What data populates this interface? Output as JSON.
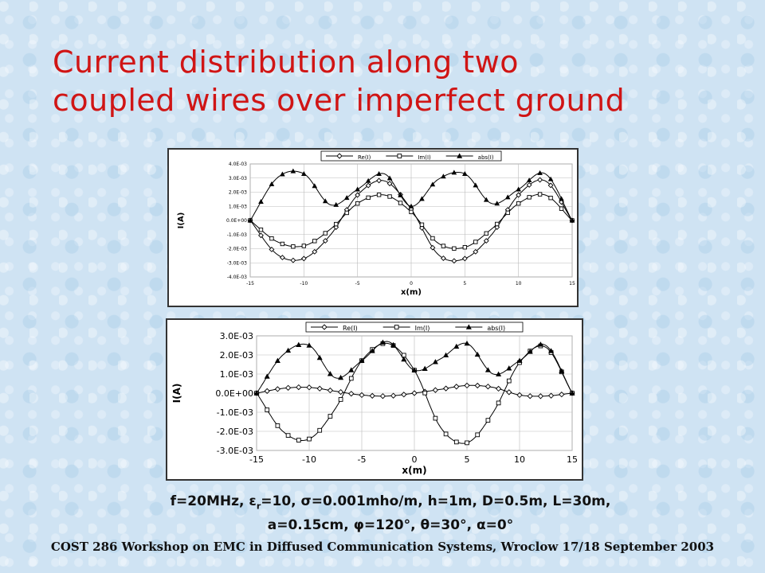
{
  "title_line1": "Current distribution along two",
  "title_line2": "coupled wires over imperfect ground",
  "params": {
    "line1_a": "f=20MHz, ε",
    "line1_sub": "r",
    "line1_b": "=10, σ=0.001mho/m, h=1m, D=0.5m, L=30m,",
    "line2": "a=0.15cm, φ=120°, θ=30°, α=0°"
  },
  "footer": "COST 286  Workshop on EMC in Diffused Communication Systems,   Wroclow 17/18 September 2003",
  "chart_data": [
    {
      "type": "line",
      "title": "",
      "xlabel": "x(m)",
      "ylabel": "I(A)",
      "xlim": [
        -15,
        15
      ],
      "ylim": [
        -0.004,
        0.004
      ],
      "xticks": [
        "-15",
        "-10",
        "-5",
        "0",
        "5",
        "10",
        "15"
      ],
      "yticks": [
        "-4.0E-03",
        "-3.0E-03",
        "-2.0E-03",
        "-1.0E-03",
        "0.0E+00",
        "1.0E-03",
        "2.0E-03",
        "3.0E-03",
        "4.0E-03"
      ],
      "legend_position": "top",
      "grid": true,
      "x": [
        -15,
        -12.5,
        -10,
        -7.5,
        -5,
        -2.5,
        0,
        2.5,
        5,
        7.5,
        10,
        12.5,
        15
      ],
      "series": [
        {
          "name": "Re(I)",
          "marker": "diamond",
          "values": [
            0,
            -0.0024,
            -0.0027,
            -0.001,
            0.0018,
            0.0028,
            0.0008,
            -0.0024,
            -0.0027,
            -0.001,
            0.0018,
            0.0028,
            0
          ]
        },
        {
          "name": "Im(I)",
          "marker": "square",
          "values": [
            0,
            -0.0015,
            -0.0018,
            -0.0006,
            0.0012,
            0.0018,
            0.0006,
            -0.0016,
            -0.0019,
            -0.0006,
            0.0012,
            0.0018,
            0
          ]
        },
        {
          "name": "abs(I)",
          "marker": "triangle",
          "values": [
            0,
            0.003,
            0.0033,
            0.0011,
            0.0022,
            0.0033,
            0.001,
            0.0029,
            0.0033,
            0.0012,
            0.0022,
            0.0033,
            0
          ]
        }
      ]
    },
    {
      "type": "line",
      "title": "",
      "xlabel": "x(m)",
      "ylabel": "I(A)",
      "xlim": [
        -15,
        15
      ],
      "ylim": [
        -0.003,
        0.003
      ],
      "xticks": [
        "-15",
        "-10",
        "-5",
        "0",
        "5",
        "10",
        "15"
      ],
      "yticks": [
        "-3.0E-03",
        "-2.0E-03",
        "-1.0E-03",
        "0.0E+00",
        "1.0E-03",
        "2.0E-03",
        "3.0E-03"
      ],
      "legend_position": "top",
      "grid": true,
      "x": [
        -15,
        -12.5,
        -10,
        -7.5,
        -5,
        -2.5,
        0,
        2.5,
        5,
        7.5,
        10,
        12.5,
        15
      ],
      "series": [
        {
          "name": "Re(I)",
          "marker": "diamond",
          "values": [
            0,
            0.00025,
            0.0003,
            0.0001,
            -0.0001,
            -0.00015,
            0,
            0.0002,
            0.0004,
            0.0003,
            -0.0001,
            -0.00015,
            0
          ]
        },
        {
          "name": "Im(I)",
          "marker": "square",
          "values": [
            0,
            -0.002,
            -0.0024,
            -0.0008,
            0.0017,
            0.0026,
            0.0012,
            -0.0018,
            -0.0026,
            -0.001,
            0.0016,
            0.0024,
            0
          ]
        },
        {
          "name": "abs(I)",
          "marker": "triangle",
          "values": [
            0,
            0.002,
            0.0025,
            0.0008,
            0.0017,
            0.0027,
            0.0012,
            0.0018,
            0.0026,
            0.001,
            0.0017,
            0.0025,
            0
          ]
        }
      ]
    }
  ]
}
